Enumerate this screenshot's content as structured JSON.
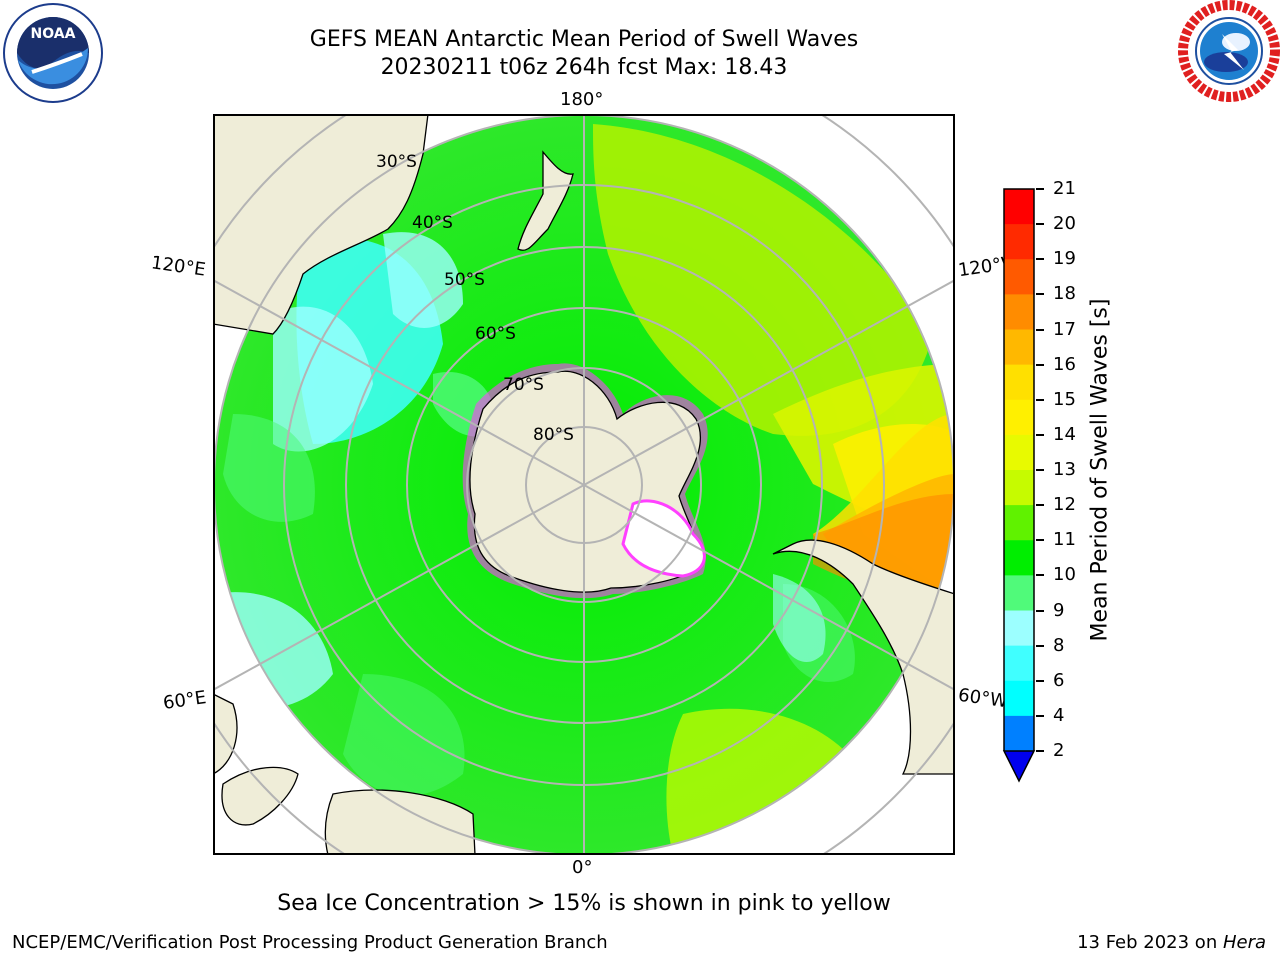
{
  "header": {
    "title_line1": "GEFS MEAN Antarctic Mean Period of Swell Waves",
    "title_line2": "20230211 t06z 264h fcst   Max: 18.43"
  },
  "logos": {
    "noaa": {
      "text": "NOAA",
      "icon": "noaa-logo-icon"
    },
    "nws": {
      "icon": "national-weather-service-logo-icon"
    }
  },
  "map": {
    "projection": "south-polar-stereographic",
    "longitude_labels": {
      "top": "180°",
      "bottom": "0°",
      "upper_left": "120°E",
      "upper_right": "120°W",
      "lower_left": "60°E",
      "lower_right": "60°W"
    },
    "latitude_labels": [
      "30°S",
      "40°S",
      "50°S",
      "60°S",
      "70°S",
      "80°S"
    ],
    "colors": {
      "land": "#efedd8",
      "grid": "#b4b4b4",
      "ocean_background": "#ffffff"
    }
  },
  "colorbar": {
    "label": "Mean Period of Swell Waves [s]",
    "ticks": [
      "2",
      "4",
      "6",
      "8",
      "9",
      "10",
      "11",
      "12",
      "13",
      "14",
      "15",
      "16",
      "17",
      "18",
      "19",
      "20",
      "21"
    ],
    "colors": [
      "#0000ee",
      "#0080ff",
      "#00ffff",
      "#40ffff",
      "#9cffff",
      "#50fa7a",
      "#00ee00",
      "#60f200",
      "#c6fb00",
      "#e8fa00",
      "#fff000",
      "#ffe000",
      "#ffb800",
      "#ff8c00",
      "#ff5a00",
      "#ff2a00",
      "#ff0000"
    ],
    "under_color": "#0000ee"
  },
  "caption": "Sea Ice Concentration > 15% is shown in pink to yellow",
  "footer": {
    "left": "NCEP/EMC/Verification Post Processing Product Generation Branch",
    "right_prefix": "13 Feb 2023 on ",
    "right_machine": "Hera"
  }
}
